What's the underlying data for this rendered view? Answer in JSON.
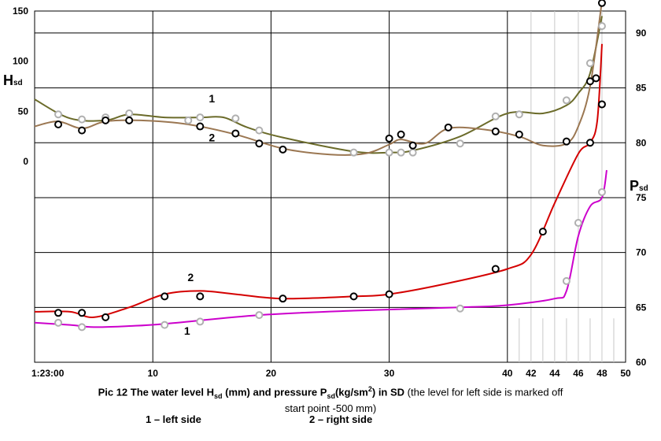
{
  "chart_data": {
    "type": "line",
    "title": "",
    "caption": {
      "prefix": "Pic 12 The water level H",
      "sub1": "sd",
      "middle": " (mm) and pressure P",
      "sub2": "sd",
      "units": "(kg/sm",
      "sup": "2",
      "after_units": ") in SD ",
      "note_line1": "(the level for left side is marked off",
      "note_line2": "start point -500 mm)"
    },
    "left_axis": {
      "title": "H",
      "title_sub": "sd",
      "ticks": [
        "150",
        "100",
        "50",
        "0"
      ],
      "range": [
        -200,
        150
      ]
    },
    "right_axis": {
      "title": "P",
      "title_sub": "sd",
      "ticks": [
        "90",
        "85",
        "80",
        "75",
        "70",
        "65",
        "60"
      ],
      "range": [
        60,
        92
      ]
    },
    "x_axis": {
      "ticks": [
        {
          "x": 0,
          "label": "1:23:00"
        },
        {
          "x": 10,
          "label": "10"
        },
        {
          "x": 20,
          "label": "20"
        },
        {
          "x": 30,
          "label": "30"
        },
        {
          "x": 40,
          "label": "40"
        },
        {
          "x": 42,
          "label": "42"
        },
        {
          "x": 44,
          "label": "44"
        },
        {
          "x": 46,
          "label": "46"
        },
        {
          "x": 48,
          "label": "48"
        },
        {
          "x": 50,
          "label": "50"
        }
      ]
    },
    "series": [
      {
        "name": "1",
        "quantity": "H",
        "color": "#6b6b2a",
        "marker": "#b0b0b0",
        "curve": [
          [
            0,
            62
          ],
          [
            3,
            43
          ],
          [
            6,
            41
          ],
          [
            8,
            47
          ],
          [
            11,
            44
          ],
          [
            14,
            44
          ],
          [
            16,
            44
          ],
          [
            18,
            34
          ],
          [
            21,
            24
          ],
          [
            27,
            10
          ],
          [
            30,
            9
          ],
          [
            32,
            11
          ],
          [
            36,
            25
          ],
          [
            40,
            48
          ],
          [
            43,
            48
          ],
          [
            45,
            56
          ],
          [
            46,
            68
          ],
          [
            47,
            88
          ],
          [
            48,
            145
          ]
        ],
        "points": [
          [
            2,
            47
          ],
          [
            4,
            42
          ],
          [
            6,
            44
          ],
          [
            8,
            48
          ],
          [
            13,
            41
          ],
          [
            14,
            44
          ],
          [
            17,
            43
          ],
          [
            19,
            31
          ],
          [
            27,
            9
          ],
          [
            30,
            9
          ],
          [
            31,
            9
          ],
          [
            32,
            9
          ],
          [
            36,
            18
          ],
          [
            39,
            45
          ],
          [
            41,
            47
          ],
          [
            45,
            61
          ],
          [
            47,
            98
          ],
          [
            48,
            135
          ]
        ]
      },
      {
        "name": "2",
        "quantity": "H",
        "color": "#9b7752",
        "marker": "#000000",
        "curve": [
          [
            0,
            35
          ],
          [
            2,
            40
          ],
          [
            4,
            33
          ],
          [
            6,
            40
          ],
          [
            9,
            41
          ],
          [
            13,
            37
          ],
          [
            17,
            27
          ],
          [
            21,
            13
          ],
          [
            25,
            7
          ],
          [
            28,
            8
          ],
          [
            30,
            17
          ],
          [
            31,
            22
          ],
          [
            33,
            18
          ],
          [
            35,
            33
          ],
          [
            38,
            32
          ],
          [
            41,
            25
          ],
          [
            43,
            16
          ],
          [
            45,
            18
          ],
          [
            46,
            35
          ],
          [
            47,
            75
          ],
          [
            48,
            160
          ]
        ],
        "points": [
          [
            2,
            37
          ],
          [
            4,
            31
          ],
          [
            6,
            41
          ],
          [
            8,
            41
          ],
          [
            14,
            35
          ],
          [
            17,
            28
          ],
          [
            19,
            18
          ],
          [
            21,
            12
          ],
          [
            30,
            23
          ],
          [
            31,
            27
          ],
          [
            32,
            16
          ],
          [
            35,
            34
          ],
          [
            39,
            30
          ],
          [
            41,
            27
          ],
          [
            45,
            20
          ],
          [
            47,
            80
          ],
          [
            47.5,
            83
          ],
          [
            48,
            158
          ]
        ]
      },
      {
        "name": "2",
        "quantity": "P",
        "color": "#d40000",
        "marker": "#000000",
        "curve": [
          [
            0,
            64.6
          ],
          [
            3,
            64.6
          ],
          [
            5,
            64.1
          ],
          [
            8,
            65.0
          ],
          [
            11,
            66.2
          ],
          [
            14,
            66.5
          ],
          [
            17,
            66.2
          ],
          [
            21,
            65.8
          ],
          [
            27,
            66.0
          ],
          [
            30,
            66.2
          ],
          [
            35,
            67.2
          ],
          [
            40,
            68.5
          ],
          [
            42,
            69.8
          ],
          [
            44,
            74.5
          ],
          [
            46,
            79.0
          ],
          [
            47,
            80.0
          ],
          [
            47.6,
            82.0
          ],
          [
            48,
            89.0
          ]
        ],
        "points": [
          [
            2,
            64.5
          ],
          [
            4,
            64.5
          ],
          [
            6,
            64.1
          ],
          [
            11,
            66.0
          ],
          [
            14,
            66.0
          ],
          [
            21,
            65.8
          ],
          [
            27,
            66.0
          ],
          [
            30,
            66.2
          ],
          [
            39,
            68.5
          ],
          [
            43,
            71.9
          ],
          [
            47,
            80.0
          ],
          [
            48,
            83.5
          ]
        ]
      },
      {
        "name": "1",
        "quantity": "P",
        "color": "#cc00cc",
        "marker": "#b0b0b0",
        "curve": [
          [
            0,
            63.6
          ],
          [
            3,
            63.4
          ],
          [
            5,
            63.2
          ],
          [
            8,
            63.3
          ],
          [
            11,
            63.5
          ],
          [
            19,
            64.3
          ],
          [
            27,
            64.7
          ],
          [
            36,
            65.0
          ],
          [
            40,
            65.2
          ],
          [
            44,
            65.8
          ],
          [
            45,
            66.5
          ],
          [
            46,
            71.5
          ],
          [
            47,
            74.2
          ],
          [
            48,
            75.0
          ],
          [
            48.4,
            77.5
          ]
        ],
        "points": [
          [
            2,
            63.6
          ],
          [
            4,
            63.2
          ],
          [
            11,
            63.4
          ],
          [
            14,
            63.7
          ],
          [
            19,
            64.3
          ],
          [
            36,
            64.9
          ],
          [
            45,
            67.4
          ],
          [
            46,
            72.7
          ],
          [
            48,
            75.5
          ]
        ]
      }
    ],
    "series_labels": [
      {
        "series": 0,
        "text": "1",
        "x": 15.0,
        "h": 59
      },
      {
        "series": 1,
        "text": "2",
        "x": 15.0,
        "h": 20
      },
      {
        "series": 2,
        "text": "2",
        "x": 13.2,
        "p": 67.4
      },
      {
        "series": 3,
        "text": "1",
        "x": 12.9,
        "p": 62.5
      }
    ],
    "legend": {
      "item1": "1 – left side",
      "item2": "2 – right side"
    },
    "grid": true
  }
}
